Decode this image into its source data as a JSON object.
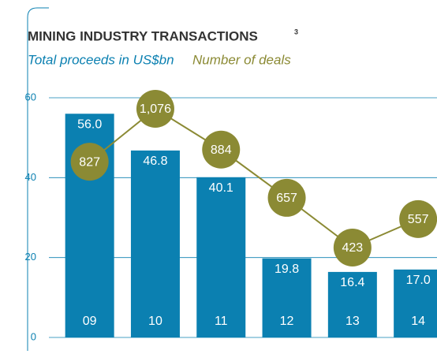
{
  "chart_data": {
    "type": "bar",
    "title": "MINING INDUSTRY TRANSACTIONS",
    "title_superscript": "3",
    "categories": [
      "09",
      "10",
      "11",
      "12",
      "13",
      "14"
    ],
    "series": [
      {
        "name": "Total proceeds in US$bn",
        "color": "#0b80b1",
        "type": "bar",
        "values": [
          56.0,
          46.8,
          40.1,
          19.8,
          16.4,
          17.0
        ],
        "value_labels": [
          "56.0",
          "46.8",
          "40.1",
          "19.8",
          "16.4",
          "17.0"
        ]
      },
      {
        "name": "Number of deals",
        "color": "#8b8a34",
        "type": "line",
        "axis": "y2",
        "values": [
          827,
          1076,
          884,
          657,
          423,
          557
        ],
        "value_labels": [
          "827",
          "1,076",
          "884",
          "657",
          "423",
          "557"
        ]
      }
    ],
    "ylim": [
      0,
      60
    ],
    "yticks": [
      0,
      20,
      40,
      60
    ],
    "y2lim": [
      0,
      1128
    ],
    "grid": true
  }
}
